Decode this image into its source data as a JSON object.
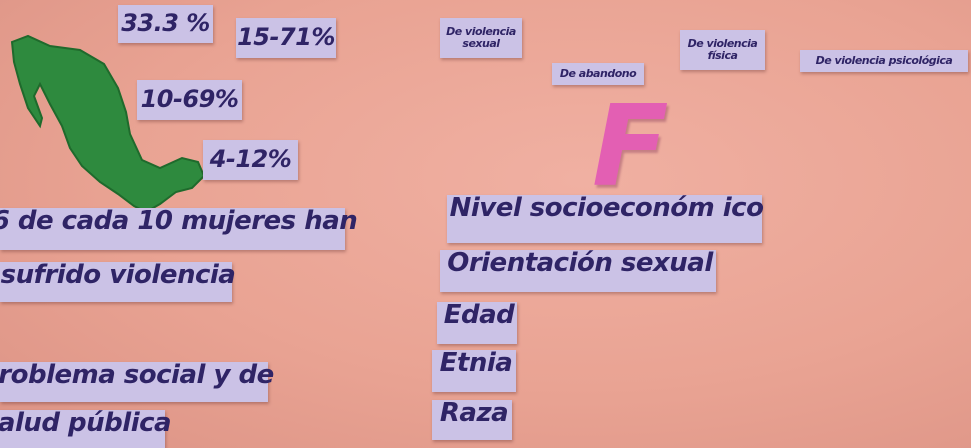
{
  "percentages": [
    "33.3 %",
    "15-71%",
    "10-69%",
    "4-12%"
  ],
  "statements": [
    "6 de cada 10 mujeres han",
    "sufrido violencia",
    "roblema social y de",
    "alud pública"
  ],
  "violence_types": [
    [
      "De violencia",
      "sexual"
    ],
    [
      "De abandono"
    ],
    [
      "De violencia",
      "física"
    ],
    [
      "De violencia psicológica"
    ]
  ],
  "letter": "F",
  "factors": [
    "Nivel socioeconóm ico",
    "Orientación sexual",
    "Edad",
    "Etnia",
    "Raza"
  ]
}
